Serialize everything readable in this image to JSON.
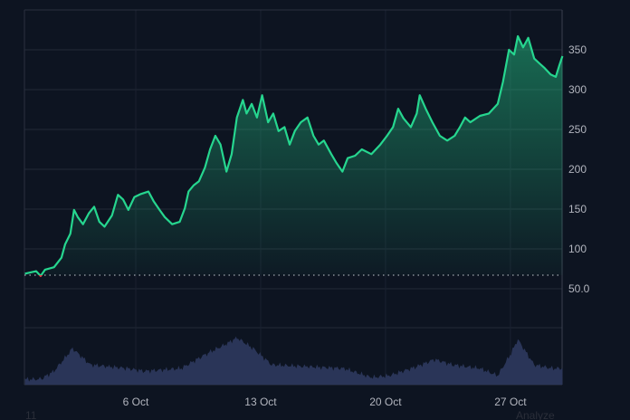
{
  "chart_data": {
    "type": "area",
    "baseline": 67,
    "colors": {
      "background": "#0d1421",
      "up_line": "#26d68f",
      "down_line": "#e0424b",
      "volume": "#2a3558",
      "grid": "#232a38",
      "axis_text": "#b2b5be"
    },
    "grid": true,
    "y_ticks": [
      "350",
      "300",
      "250",
      "200",
      "150",
      "100",
      "50.0"
    ],
    "y_tick_values": [
      350,
      300,
      250,
      200,
      150,
      100,
      50
    ],
    "ylim": [
      50,
      370
    ],
    "x_ticks": [
      "6 Oct",
      "13 Oct",
      "20 Oct",
      "27 Oct"
    ],
    "x_tick_dates": [
      "10-06 00",
      "10-13 00",
      "10-20 00",
      "10-27 00"
    ],
    "price": [
      [
        "09-29 19",
        69
      ],
      [
        "09-30 10",
        72
      ],
      [
        "09-30 16",
        66
      ],
      [
        "09-30 22",
        74
      ],
      [
        "10-01 10",
        77
      ],
      [
        "10-01 20",
        89
      ],
      [
        "10-02 01",
        106
      ],
      [
        "10-02 08",
        119
      ],
      [
        "10-02 13",
        149
      ],
      [
        "10-02 18",
        140
      ],
      [
        "10-03 01",
        131
      ],
      [
        "10-03 09",
        145
      ],
      [
        "10-03 16",
        153
      ],
      [
        "10-03 23",
        134
      ],
      [
        "10-04 06",
        128
      ],
      [
        "10-04 16",
        142
      ],
      [
        "10-05 00",
        168
      ],
      [
        "10-05 07",
        162
      ],
      [
        "10-05 14",
        149
      ],
      [
        "10-05 22",
        165
      ],
      [
        "10-06 07",
        169
      ],
      [
        "10-06 17",
        172
      ],
      [
        "10-07 00",
        160
      ],
      [
        "10-07 08",
        149
      ],
      [
        "10-07 15",
        140
      ],
      [
        "10-08 01",
        131
      ],
      [
        "10-08 11",
        134
      ],
      [
        "10-08 18",
        151
      ],
      [
        "10-08 23",
        172
      ],
      [
        "10-09 06",
        180
      ],
      [
        "10-09 13",
        185
      ],
      [
        "10-09 21",
        202
      ],
      [
        "10-10 04",
        225
      ],
      [
        "10-10 11",
        242
      ],
      [
        "10-10 18",
        231
      ],
      [
        "10-11 02",
        197
      ],
      [
        "10-11 09",
        219
      ],
      [
        "10-11 16",
        265
      ],
      [
        "10-12 00",
        287
      ],
      [
        "10-12 05",
        270
      ],
      [
        "10-12 12",
        282
      ],
      [
        "10-12 19",
        265
      ],
      [
        "10-13 02",
        293
      ],
      [
        "10-13 10",
        259
      ],
      [
        "10-13 17",
        270
      ],
      [
        "10-14 00",
        248
      ],
      [
        "10-14 08",
        253
      ],
      [
        "10-14 15",
        231
      ],
      [
        "10-14 22",
        248
      ],
      [
        "10-15 06",
        259
      ],
      [
        "10-15 15",
        265
      ],
      [
        "10-15 23",
        242
      ],
      [
        "10-16 06",
        231
      ],
      [
        "10-16 13",
        236
      ],
      [
        "10-16 23",
        219
      ],
      [
        "10-17 06",
        208
      ],
      [
        "10-17 14",
        197
      ],
      [
        "10-17 21",
        214
      ],
      [
        "10-18 07",
        217
      ],
      [
        "10-18 16",
        225
      ],
      [
        "10-19 05",
        219
      ],
      [
        "10-19 17",
        231
      ],
      [
        "10-20 02",
        242
      ],
      [
        "10-20 10",
        253
      ],
      [
        "10-20 17",
        276
      ],
      [
        "10-21 00",
        264
      ],
      [
        "10-21 10",
        253
      ],
      [
        "10-21 18",
        270
      ],
      [
        "10-21 22",
        293
      ],
      [
        "10-22 06",
        276
      ],
      [
        "10-22 15",
        259
      ],
      [
        "10-23 01",
        242
      ],
      [
        "10-23 11",
        236
      ],
      [
        "10-23 21",
        242
      ],
      [
        "10-24 04",
        253
      ],
      [
        "10-24 11",
        265
      ],
      [
        "10-24 18",
        259
      ],
      [
        "10-25 07",
        267
      ],
      [
        "10-25 19",
        270
      ],
      [
        "10-26 07",
        282
      ],
      [
        "10-26 14",
        310
      ],
      [
        "10-26 22",
        350
      ],
      [
        "10-27 05",
        344
      ],
      [
        "10-27 10",
        367
      ],
      [
        "10-27 17",
        353
      ],
      [
        "10-28 00",
        365
      ],
      [
        "10-28 08",
        339
      ],
      [
        "10-28 15",
        333
      ],
      [
        "10-28 22",
        327
      ],
      [
        "10-29 06",
        319
      ],
      [
        "10-29 13",
        316
      ],
      [
        "10-29 18",
        331
      ],
      [
        "10-29 22",
        342
      ]
    ],
    "volume_relative": [
      [
        "09-29 19",
        6
      ],
      [
        "09-30 16",
        6
      ],
      [
        "10-01 10",
        15
      ],
      [
        "10-02 11",
        40
      ],
      [
        "10-03 11",
        22
      ],
      [
        "10-04 12",
        20
      ],
      [
        "10-05 12",
        18
      ],
      [
        "10-06 12",
        15
      ],
      [
        "10-08 13",
        18
      ],
      [
        "10-10 01",
        35
      ],
      [
        "10-11 02",
        45
      ],
      [
        "10-11 16",
        52
      ],
      [
        "10-12 14",
        40
      ],
      [
        "10-13 15",
        22
      ],
      [
        "10-15 15",
        20
      ],
      [
        "10-17 16",
        18
      ],
      [
        "10-19 05",
        8
      ],
      [
        "10-20 05",
        10
      ],
      [
        "10-21 18",
        20
      ],
      [
        "10-22 18",
        28
      ],
      [
        "10-23 18",
        22
      ],
      [
        "10-25 07",
        18
      ],
      [
        "10-26 07",
        10
      ],
      [
        "10-27 01",
        35
      ],
      [
        "10-27 10",
        50
      ],
      [
        "10-28 08",
        22
      ],
      [
        "10-29 08",
        18
      ],
      [
        "10-29 22",
        18
      ]
    ]
  },
  "footer": {
    "left_text": "11",
    "right_text": "Analyze"
  }
}
